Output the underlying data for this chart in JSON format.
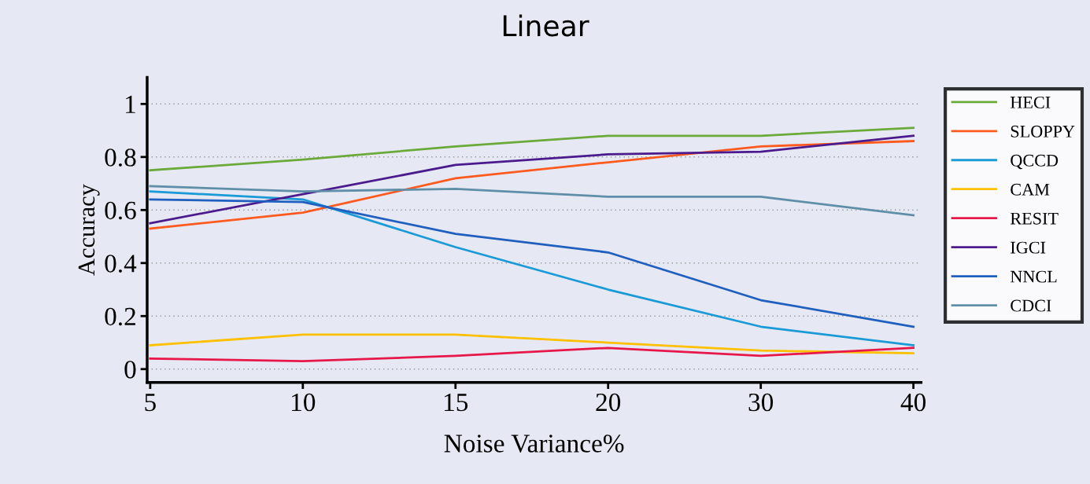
{
  "chart_data": {
    "type": "line",
    "title": "Linear",
    "xlabel": "Noise Variance%",
    "ylabel": "Accuracy",
    "categories": [
      "5",
      "10",
      "15",
      "20",
      "30",
      "40"
    ],
    "series": [
      {
        "name": "HECI",
        "color": "#6aaa3a",
        "values": [
          0.75,
          0.79,
          0.84,
          0.88,
          0.88,
          0.91
        ]
      },
      {
        "name": "SLOPPY",
        "color": "#ff5a1f",
        "values": [
          0.53,
          0.59,
          0.72,
          0.78,
          0.84,
          0.86
        ]
      },
      {
        "name": "QCCD",
        "color": "#1a9ad6",
        "values": [
          0.67,
          0.64,
          0.46,
          0.3,
          0.16,
          0.09
        ]
      },
      {
        "name": "CAM",
        "color": "#ffc000",
        "values": [
          0.09,
          0.13,
          0.13,
          0.1,
          0.07,
          0.06
        ]
      },
      {
        "name": "RESIT",
        "color": "#e8174a",
        "values": [
          0.04,
          0.03,
          0.05,
          0.08,
          0.05,
          0.08
        ]
      },
      {
        "name": "IGCI",
        "color": "#4b1b8e",
        "values": [
          0.55,
          0.66,
          0.77,
          0.81,
          0.82,
          0.88
        ]
      },
      {
        "name": "NNCL",
        "color": "#1f5fbf",
        "values": [
          0.64,
          0.63,
          0.51,
          0.44,
          0.26,
          0.16
        ]
      },
      {
        "name": "CDCI",
        "color": "#5f8fa8",
        "values": [
          0.69,
          0.67,
          0.68,
          0.65,
          0.65,
          0.58
        ]
      }
    ],
    "ylim": [
      -0.05,
      1.1
    ],
    "yticks": [
      0,
      0.2,
      0.4,
      0.6,
      0.8,
      {
        "value": 1,
        "label": "1"
      }
    ],
    "grid": "y",
    "legend": "right",
    "marker": "none",
    "line_style": "solid"
  }
}
